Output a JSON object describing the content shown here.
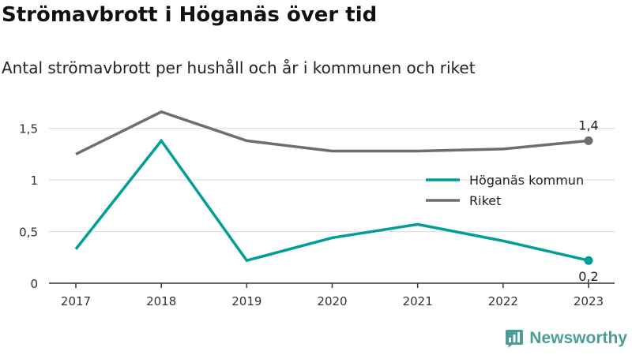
{
  "title": "Strömavbrott i Höganäs över tid",
  "subtitle": "Antal strömavbrott per hushåll och år i kommunen och riket",
  "brand": "Newsworthy",
  "chart_data": {
    "type": "line",
    "x": [
      "2017",
      "2018",
      "2019",
      "2020",
      "2021",
      "2022",
      "2023"
    ],
    "ylim": [
      0,
      1.75
    ],
    "yticks": [
      0,
      0.5,
      1,
      1.5
    ],
    "ytick_labels": [
      "0",
      "0,5",
      "1",
      "1,5"
    ],
    "grid": true,
    "legend_position": "right",
    "series": [
      {
        "name": "Höganäs kommun",
        "color": "#009e96",
        "values": [
          0.33,
          1.38,
          0.22,
          0.44,
          0.57,
          0.41,
          0.22
        ],
        "end_label": "0,2",
        "end_label_position": "below"
      },
      {
        "name": "Riket",
        "color": "#6d6e73",
        "values": [
          1.25,
          1.66,
          1.38,
          1.28,
          1.28,
          1.3,
          1.38
        ],
        "end_label": "1,4",
        "end_label_position": "above"
      }
    ]
  }
}
